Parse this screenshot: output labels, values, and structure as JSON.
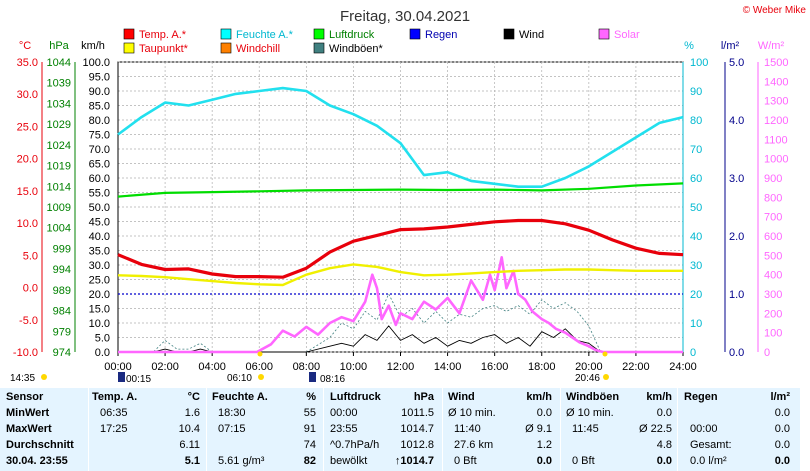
{
  "chart_data": {
    "type": "line",
    "title": "Freitag, 30.04.2021",
    "copyright": "© Weber Mike",
    "x_ticks": [
      "00:00",
      "02:00",
      "04:00",
      "06:00",
      "08:00",
      "10:00",
      "12:00",
      "14:00",
      "16:00",
      "18:00",
      "20:00",
      "22:00",
      "24:00"
    ],
    "axes": {
      "temp": {
        "unit": "°C",
        "ticks": [
          35.0,
          30.0,
          25.0,
          20.0,
          15.0,
          10.0,
          5.0,
          0.0,
          -5.0,
          -10.0
        ],
        "ylim": [
          -10,
          35
        ],
        "color": "#e8000b"
      },
      "press": {
        "unit": "hPa",
        "ticks": [
          1044,
          1039,
          1034,
          1029,
          1024,
          1019,
          1014,
          1009,
          1004,
          999,
          994,
          989,
          984,
          979,
          974
        ],
        "ylim": [
          974,
          1044
        ],
        "color": "#008000"
      },
      "wind": {
        "unit": "km/h",
        "ticks": [
          100.0,
          95.0,
          90.0,
          85.0,
          80.0,
          75.0,
          70.0,
          65.0,
          60.0,
          55.0,
          50.0,
          45.0,
          40.0,
          35.0,
          30.0,
          25.0,
          20.0,
          15.0,
          10.0,
          5.0,
          0.0
        ],
        "ylim": [
          0,
          100
        ],
        "color": "#000000"
      },
      "hum": {
        "unit": "%",
        "ticks": [
          100,
          90,
          80,
          70,
          60,
          50,
          40,
          30,
          20,
          10,
          0
        ],
        "ylim": [
          0,
          100
        ],
        "color": "#00b8d0"
      },
      "rain": {
        "unit": "l/m²",
        "ticks": [
          "5.0",
          "4.0",
          "3.0",
          "2.0",
          "1.0",
          "0.0"
        ],
        "ylim": [
          0,
          5
        ],
        "color": "#00008b"
      },
      "solar": {
        "unit": "W/m²",
        "ticks": [
          1500,
          1400,
          1300,
          1200,
          1100,
          1000,
          900,
          800,
          700,
          600,
          500,
          400,
          300,
          200,
          100,
          0
        ],
        "ylim": [
          0,
          1500
        ],
        "color": "#ff66ff"
      }
    },
    "legend": [
      {
        "name": "Temp. A.*",
        "color": "#ff0000"
      },
      {
        "name": "Feuchte A.*",
        "color": "#00ffff"
      },
      {
        "name": "Luftdruck",
        "color": "#00ff00"
      },
      {
        "name": "Regen",
        "color": "#0000ff"
      },
      {
        "name": "Wind",
        "color": "#000000"
      },
      {
        "name": "Solar",
        "color": "#ff66ff"
      },
      {
        "name": "Taupunkt*",
        "color": "#ffff00"
      },
      {
        "name": "Windchill",
        "color": "#ff8000"
      },
      {
        "name": "Windböen*",
        "color": "#408080"
      }
    ],
    "series": {
      "temp": {
        "x": [
          0,
          1,
          2,
          3,
          4,
          5,
          6,
          7,
          8,
          9,
          10,
          11,
          12,
          13,
          14,
          15,
          16,
          17,
          18,
          19,
          20,
          21,
          22,
          23,
          24
        ],
        "y": [
          5.1,
          3.6,
          2.8,
          2.9,
          2.1,
          1.7,
          1.7,
          1.6,
          3.0,
          5.5,
          7.2,
          8.1,
          9.0,
          9.1,
          9.4,
          9.8,
          10.2,
          10.4,
          10.4,
          9.9,
          8.9,
          7.4,
          6.1,
          5.3,
          5.1
        ]
      },
      "dew": {
        "x": [
          0,
          1,
          2,
          3,
          4,
          5,
          6,
          7,
          8,
          9,
          10,
          11,
          12,
          13,
          14,
          15,
          16,
          17,
          18,
          19,
          20,
          21,
          22,
          23,
          24
        ],
        "y": [
          1.9,
          1.8,
          1.6,
          1.3,
          1.0,
          0.7,
          0.5,
          0.4,
          2.0,
          3.0,
          3.6,
          3.2,
          2.4,
          1.9,
          2.0,
          2.2,
          2.4,
          2.6,
          2.7,
          2.8,
          2.8,
          2.7,
          2.6,
          2.6,
          2.6
        ]
      },
      "humidity": {
        "x": [
          0,
          1,
          2,
          3,
          4,
          5,
          6,
          7,
          8,
          9,
          10,
          11,
          12,
          13,
          14,
          15,
          16,
          17,
          18,
          19,
          20,
          21,
          22,
          23,
          24
        ],
        "y": [
          75,
          81,
          86,
          85,
          87,
          89,
          90,
          91,
          90,
          85,
          82,
          78,
          72,
          61,
          62,
          59,
          58,
          57,
          57,
          60,
          64,
          69,
          74,
          79,
          81
        ]
      },
      "pressure": {
        "x": [
          0,
          2,
          4,
          6,
          8,
          10,
          12,
          14,
          16,
          18,
          20,
          22,
          24
        ],
        "y": [
          1011.5,
          1012.4,
          1012.6,
          1012.8,
          1013.0,
          1013.1,
          1013.2,
          1013.1,
          1013.2,
          1013.0,
          1013.4,
          1014.2,
          1014.7
        ]
      },
      "solar": {
        "x": [
          0,
          5.9,
          6.5,
          7,
          7.5,
          8,
          8.5,
          9,
          9.5,
          10,
          10.5,
          10.8,
          11,
          11.2,
          11.5,
          11.8,
          12,
          12.5,
          13,
          13.5,
          14,
          14.5,
          15,
          15.5,
          15.8,
          16,
          16.3,
          16.5,
          16.8,
          17,
          17.3,
          17.6,
          18,
          18.3,
          18.6,
          19,
          19.3,
          19.6,
          20,
          20.3,
          20.6,
          24
        ],
        "y": [
          0,
          0,
          40,
          110,
          80,
          130,
          90,
          150,
          180,
          160,
          260,
          400,
          330,
          170,
          240,
          140,
          200,
          170,
          260,
          220,
          280,
          200,
          370,
          270,
          400,
          320,
          490,
          330,
          420,
          300,
          270,
          210,
          170,
          150,
          120,
          100,
          75,
          50,
          30,
          10,
          0,
          0
        ]
      },
      "wind": {
        "x": [
          0,
          1.5,
          2,
          2.5,
          3,
          3.5,
          4,
          5,
          6,
          7,
          8,
          9,
          9.5,
          10,
          10.5,
          11,
          11.5,
          12,
          12.5,
          13,
          13.5,
          14,
          14.5,
          15,
          15.5,
          16,
          16.5,
          17,
          17.5,
          18,
          18.5,
          19,
          19.5,
          20,
          20.5,
          24
        ],
        "y": [
          0,
          0,
          1,
          0,
          0,
          1,
          0,
          0,
          0,
          0,
          0,
          2,
          3,
          2,
          6,
          4,
          9,
          4,
          6,
          3,
          5,
          2,
          4,
          3,
          5,
          6,
          3,
          5,
          2,
          7,
          5,
          8,
          4,
          3,
          0,
          0
        ]
      },
      "gusts": {
        "x": [
          0,
          1.5,
          2,
          2.5,
          3,
          3.5,
          4,
          5,
          6,
          7,
          8,
          9,
          9.5,
          10,
          10.5,
          11,
          11.5,
          12,
          12.5,
          13,
          13.5,
          14,
          14.5,
          15,
          15.5,
          16,
          16.5,
          17,
          17.5,
          18,
          18.5,
          19,
          19.5,
          20,
          20.5,
          24
        ],
        "y": [
          0,
          0,
          4,
          1,
          1,
          3,
          0,
          0,
          0,
          0,
          0,
          5,
          10,
          8,
          14,
          11,
          20,
          12,
          15,
          10,
          14,
          10,
          13,
          12,
          15,
          16,
          14,
          16,
          13,
          18,
          15,
          17,
          14,
          9,
          0,
          0
        ]
      },
      "rain_level_l_m2": 1.0
    },
    "bottom_labels": {
      "left": "14:35",
      "sunrise": "06:10",
      "sunset": "20:46",
      "moonrise": "00:15",
      "moonset": "08:16"
    }
  },
  "stats": {
    "sensor": {
      "header": "Sensor",
      "rows": [
        "MinWert",
        "MaxWert",
        "Durchschnitt",
        "30.04. 23:55"
      ]
    },
    "temp": {
      "header": "Temp. A.",
      "unit": "°C",
      "rows": [
        [
          "06:35",
          "1.6"
        ],
        [
          "17:25",
          "10.4"
        ],
        [
          "",
          "6.11"
        ],
        [
          "",
          "5.1"
        ]
      ]
    },
    "humidity": {
      "header": "Feuchte A.",
      "unit": "%",
      "rows": [
        [
          "18:30",
          "55"
        ],
        [
          "07:15",
          "91"
        ],
        [
          "",
          "74"
        ],
        [
          "5.61 g/m³",
          "82"
        ]
      ]
    },
    "pressure": {
      "header": "Luftdruck",
      "unit": "hPa",
      "rows": [
        [
          "00:00",
          "1011.5"
        ],
        [
          "23:55",
          "1014.7"
        ],
        [
          "^0.7hPa/h",
          "1012.8"
        ],
        [
          "bewölkt",
          "↑1014.7"
        ]
      ]
    },
    "wind": {
      "header": "Wind",
      "unit": "km/h",
      "rows": [
        [
          "Ø 10 min.",
          "0.0"
        ],
        [
          "11:40",
          "Ø 9.1"
        ],
        [
          "27.6 km",
          "1.2"
        ],
        [
          "0 Bft",
          "0.0"
        ]
      ]
    },
    "gusts": {
      "header": "Windböen",
      "unit": "km/h",
      "rows": [
        [
          "Ø 10 min.",
          "0.0"
        ],
        [
          "11:45",
          "Ø 22.5"
        ],
        [
          "",
          "4.8"
        ],
        [
          "0 Bft",
          "0.0"
        ]
      ]
    },
    "rain": {
      "header": "Regen",
      "unit": "l/m²",
      "rows": [
        [
          "",
          "0.0"
        ],
        [
          "00:00",
          "0.0"
        ],
        [
          "Gesamt:",
          "0.0"
        ],
        [
          "0.0 l/m²",
          "0.0"
        ]
      ]
    }
  }
}
